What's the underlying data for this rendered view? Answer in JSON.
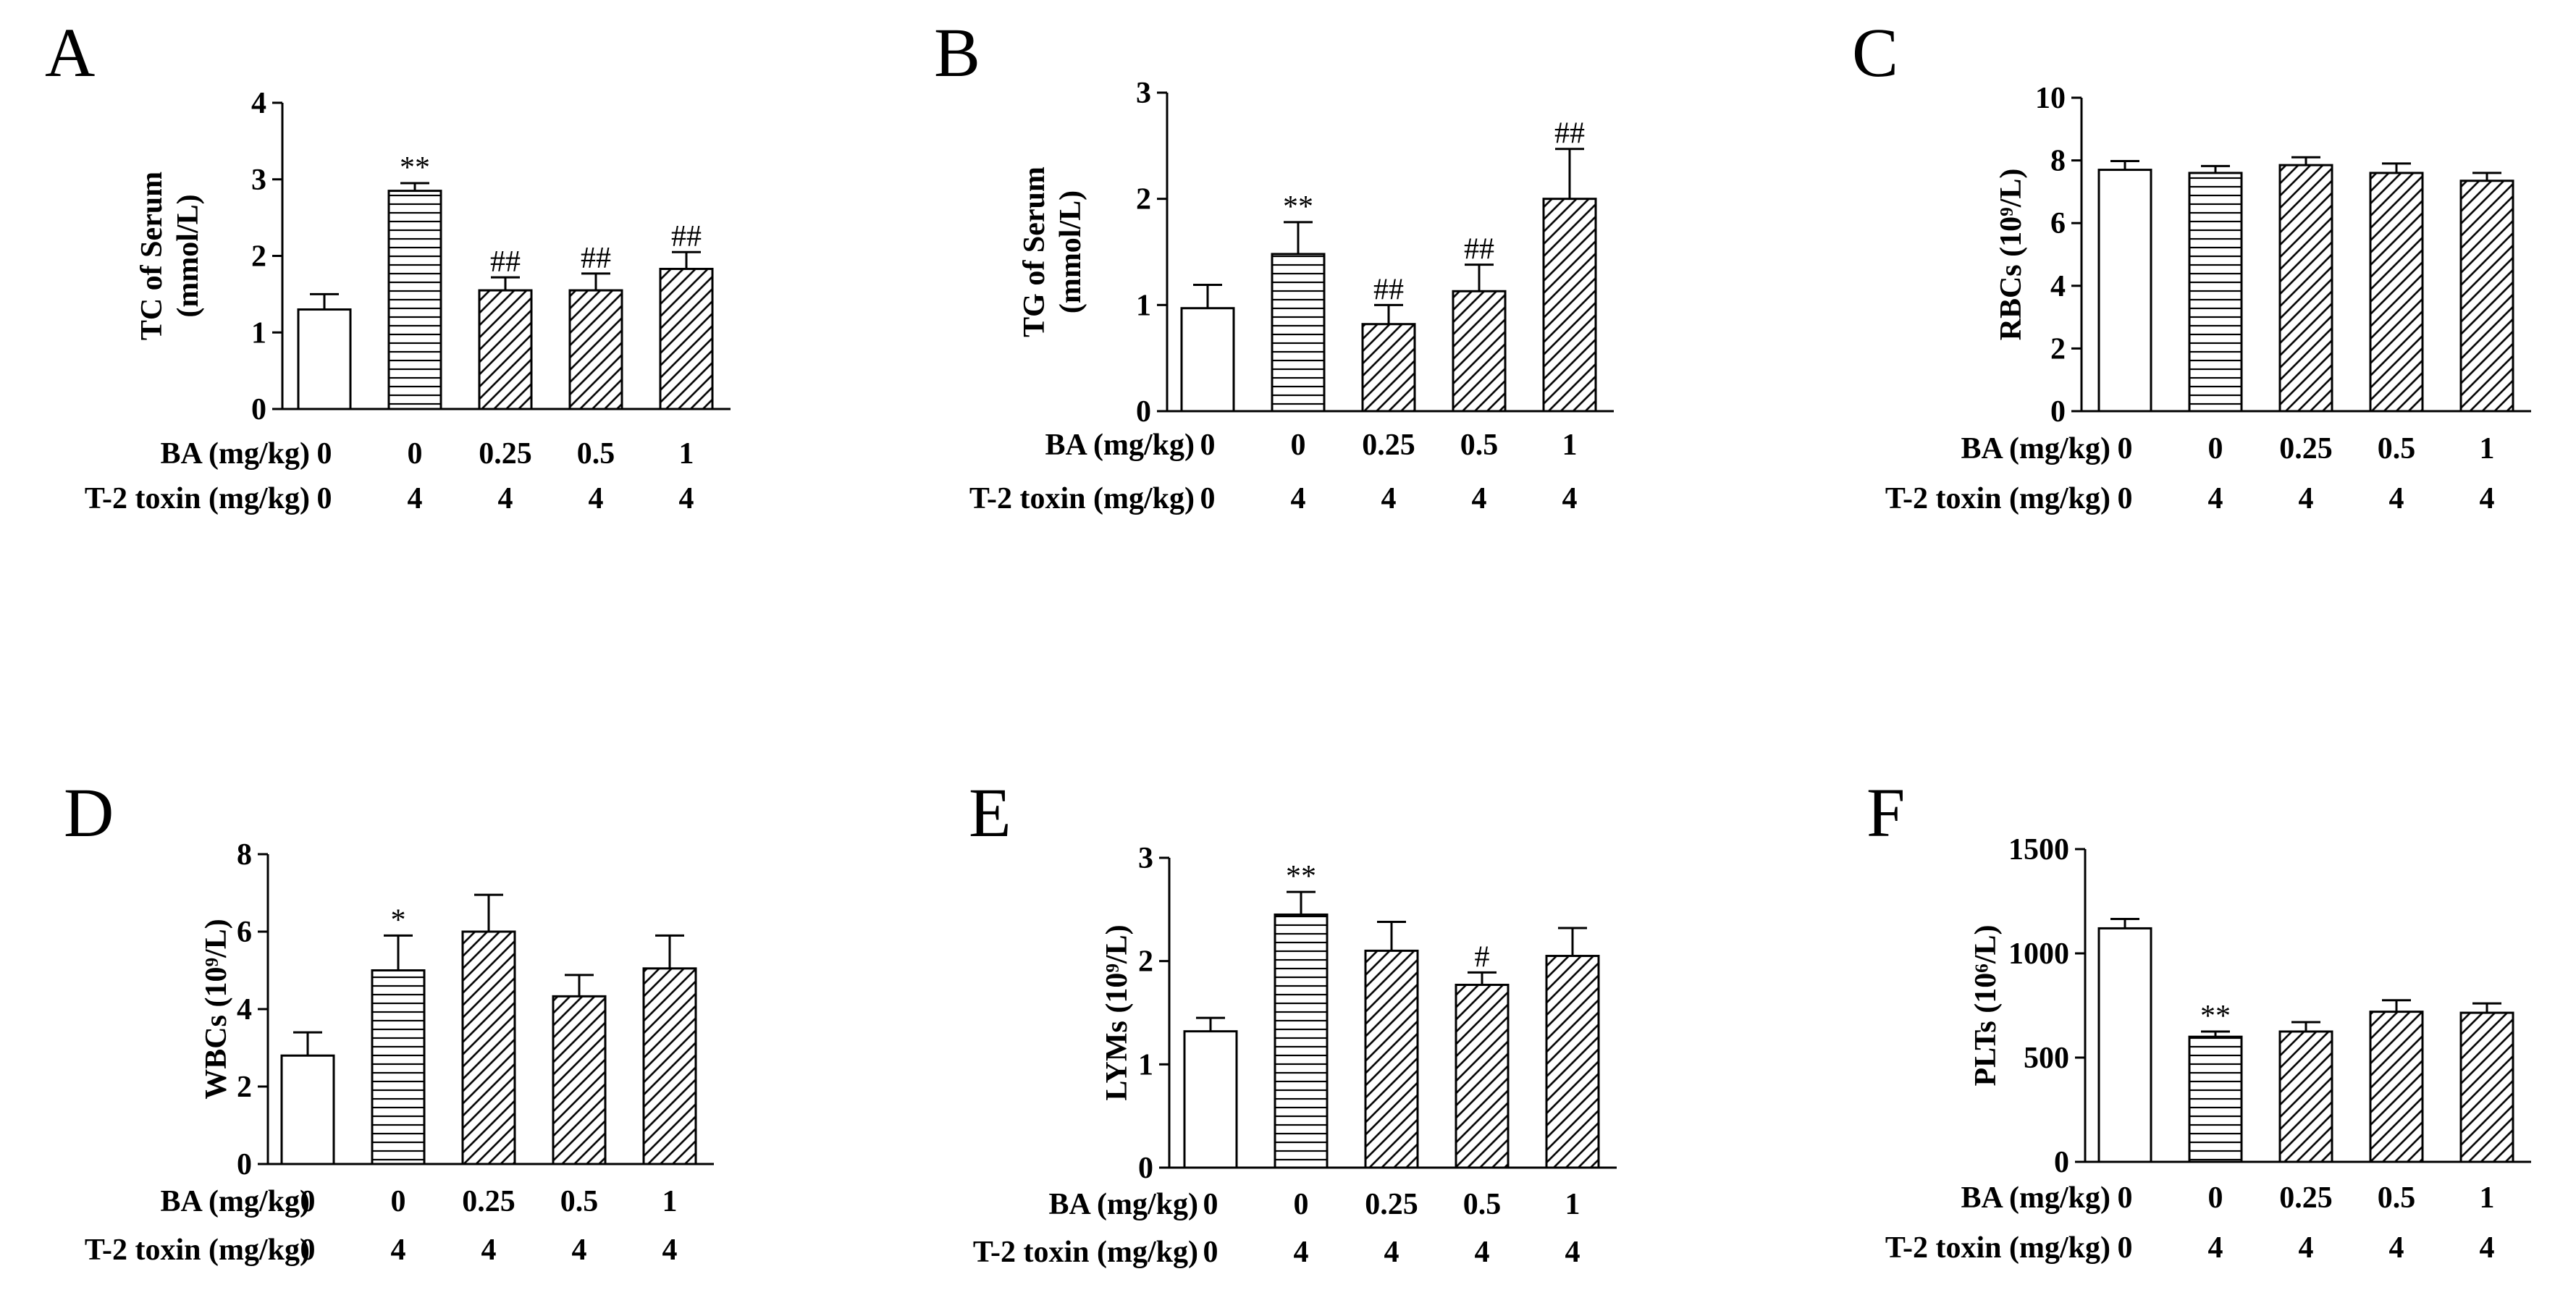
{
  "figure": {
    "background": "#ffffff",
    "ink": "#000000"
  },
  "row_titles": {
    "ba": "BA (mg/kg)",
    "t2": "T-2 toxin (mg/kg)"
  },
  "groups": [
    {
      "ba": "0",
      "t2": "0",
      "pattern": "open"
    },
    {
      "ba": "0",
      "t2": "4",
      "pattern": "horizontal"
    },
    {
      "ba": "0.25",
      "t2": "4",
      "pattern": "diagonal"
    },
    {
      "ba": "0.5",
      "t2": "4",
      "pattern": "diagonal"
    },
    {
      "ba": "1",
      "t2": "4",
      "pattern": "diagonal"
    }
  ],
  "chart_data": [
    {
      "panel": "A",
      "type": "bar",
      "ylabel_lines": [
        "TC of Serum",
        "(mmol/L)"
      ],
      "ylim": [
        0,
        4
      ],
      "yticks": [
        0,
        1,
        2,
        3,
        4
      ],
      "categories": [
        "0/0",
        "0/4",
        "0.25/4",
        "0.5/4",
        "1/4"
      ],
      "values": [
        1.3,
        2.85,
        1.55,
        1.55,
        1.83
      ],
      "errors": [
        0.2,
        0.1,
        0.17,
        0.22,
        0.22
      ],
      "annotations": [
        "",
        "**",
        "##",
        "##",
        "##"
      ]
    },
    {
      "panel": "B",
      "type": "bar",
      "ylabel_lines": [
        "TG of Serum",
        "(mmol/L)"
      ],
      "ylim": [
        0,
        3
      ],
      "yticks": [
        0,
        1,
        2,
        3
      ],
      "categories": [
        "0/0",
        "0/4",
        "0.25/4",
        "0.5/4",
        "1/4"
      ],
      "values": [
        0.97,
        1.48,
        0.82,
        1.13,
        2.0
      ],
      "errors": [
        0.22,
        0.3,
        0.18,
        0.25,
        0.47
      ],
      "annotations": [
        "",
        "**",
        "##",
        "##",
        "##"
      ]
    },
    {
      "panel": "C",
      "type": "bar",
      "ylabel_lines": [
        "RBCs (10⁹/L)"
      ],
      "ylim": [
        0,
        10
      ],
      "yticks": [
        0,
        2,
        4,
        6,
        8,
        10
      ],
      "categories": [
        "0/0",
        "0/4",
        "0.25/4",
        "0.5/4",
        "1/4"
      ],
      "values": [
        7.7,
        7.6,
        7.85,
        7.6,
        7.35
      ],
      "errors": [
        0.28,
        0.22,
        0.25,
        0.3,
        0.25
      ],
      "annotations": [
        "",
        "",
        "",
        "",
        ""
      ]
    },
    {
      "panel": "D",
      "type": "bar",
      "ylabel_lines": [
        "WBCs (10⁹/L)"
      ],
      "ylim": [
        0,
        8
      ],
      "yticks": [
        0,
        2,
        4,
        6,
        8
      ],
      "categories": [
        "0/0",
        "0/4",
        "0.25/4",
        "0.5/4",
        "1/4"
      ],
      "values": [
        2.8,
        5.0,
        6.0,
        4.33,
        5.05
      ],
      "errors": [
        0.6,
        0.9,
        0.95,
        0.55,
        0.85
      ],
      "annotations": [
        "",
        "*",
        "",
        "",
        ""
      ]
    },
    {
      "panel": "E",
      "type": "bar",
      "ylabel_lines": [
        "LYMs (10⁹/L)"
      ],
      "ylim": [
        0,
        3
      ],
      "yticks": [
        0,
        1,
        2,
        3
      ],
      "categories": [
        "0/0",
        "0/4",
        "0.25/4",
        "0.5/4",
        "1/4"
      ],
      "values": [
        1.32,
        2.45,
        2.1,
        1.77,
        2.05
      ],
      "errors": [
        0.13,
        0.22,
        0.28,
        0.12,
        0.27
      ],
      "annotations": [
        "",
        "**",
        "",
        "#",
        ""
      ]
    },
    {
      "panel": "F",
      "type": "bar",
      "ylabel_lines": [
        "PLTs (10⁶/L)"
      ],
      "ylim": [
        0,
        1500
      ],
      "yticks": [
        0,
        500,
        1000,
        1500
      ],
      "categories": [
        "0/0",
        "0/4",
        "0.25/4",
        "0.5/4",
        "1/4"
      ],
      "values": [
        1120,
        600,
        625,
        720,
        715
      ],
      "errors": [
        45,
        25,
        45,
        55,
        45
      ],
      "annotations": [
        "",
        "**",
        "",
        "",
        ""
      ]
    }
  ]
}
